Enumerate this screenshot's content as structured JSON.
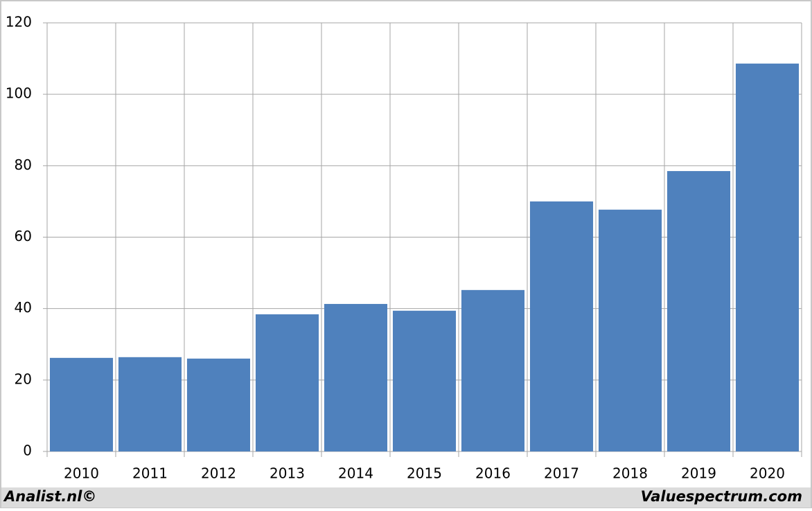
{
  "chart_data": {
    "type": "bar",
    "categories": [
      "2010",
      "2011",
      "2012",
      "2013",
      "2014",
      "2015",
      "2016",
      "2017",
      "2018",
      "2019",
      "2020"
    ],
    "values": [
      26.2,
      26.4,
      26.0,
      38.4,
      41.3,
      39.4,
      45.2,
      70.0,
      67.7,
      78.5,
      108.6
    ],
    "color": "#4f81bd",
    "ylim": [
      0,
      120
    ],
    "yticks": [
      0,
      20,
      40,
      60,
      80,
      100,
      120
    ],
    "grid": true,
    "footer_left": "Analist.nl©",
    "footer_right": "Valuespectrum.com"
  }
}
